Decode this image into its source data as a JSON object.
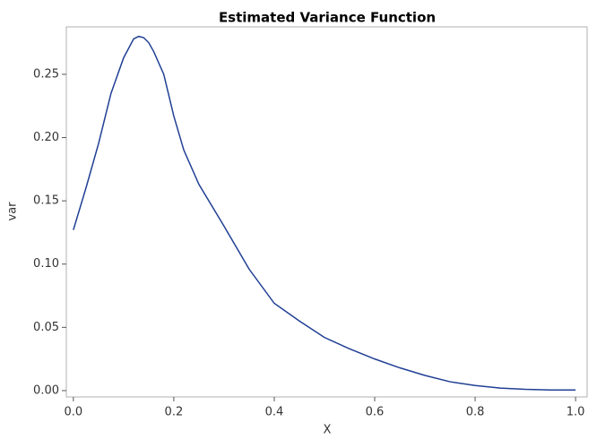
{
  "chart_data": {
    "type": "line",
    "title": "Estimated Variance Function",
    "x_label": "X",
    "y_label": "var",
    "series": [
      {
        "name": "var",
        "color": "#203f94",
        "x": [
          0,
          0.025,
          0.05,
          0.075,
          0.1,
          0.12,
          0.13,
          0.14,
          0.15,
          0.16,
          0.18,
          0.2,
          0.22,
          0.25,
          0.3,
          0.35,
          0.4,
          0.45,
          0.5,
          0.55,
          0.6,
          0.65,
          0.7,
          0.75,
          0.8,
          0.85,
          0.9,
          0.95,
          1.0
        ],
        "values": [
          0.127,
          0.16,
          0.195,
          0.235,
          0.263,
          0.278,
          0.28,
          0.279,
          0.275,
          0.268,
          0.25,
          0.217,
          0.19,
          0.163,
          0.13,
          0.096,
          0.069,
          0.055,
          0.042,
          0.033,
          0.025,
          0.018,
          0.012,
          0.007,
          0.004,
          0.002,
          0.001,
          0.0005,
          0.0005
        ]
      }
    ],
    "xlim": [
      -0.014,
      1.023
    ],
    "ylim": [
      -0.005,
      0.2875
    ],
    "xticks": [
      {
        "value": 0,
        "label": "0.0"
      },
      0.2,
      0.4,
      0.6,
      0.8,
      {
        "value": 1,
        "label": "1.0"
      }
    ],
    "yticks": [
      {
        "value": 0,
        "label": "0.00"
      },
      0.05,
      {
        "value": 0.1,
        "label": "0.10"
      },
      0.15,
      {
        "value": 0.2,
        "label": "0.20"
      },
      0.25
    ]
  }
}
